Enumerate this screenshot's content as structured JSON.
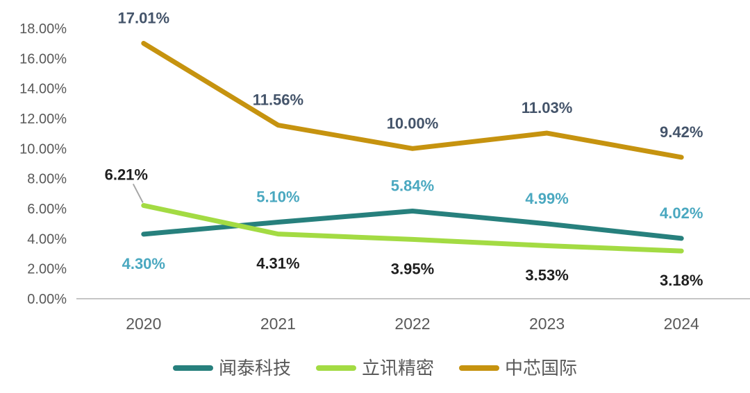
{
  "chart_data": {
    "type": "line",
    "categories": [
      "2020",
      "2021",
      "2022",
      "2023",
      "2024"
    ],
    "series": [
      {
        "name": "闻泰科技",
        "color": "#27807D",
        "values": [
          4.3,
          5.1,
          5.84,
          4.99,
          4.02
        ],
        "data_labels": [
          "4.30%",
          "5.10%",
          "5.84%",
          "4.99%",
          "4.02%"
        ],
        "label_color": "#4AA8C0",
        "label_positions": [
          "below",
          "above",
          "above",
          "above",
          "above"
        ]
      },
      {
        "name": "立讯精密",
        "color": "#A3DB43",
        "values": [
          6.21,
          4.31,
          3.95,
          3.53,
          3.18
        ],
        "data_labels": [
          "6.21%",
          "4.31%",
          "3.95%",
          "3.53%",
          "3.18%"
        ],
        "label_color": "#1F1F1F",
        "label_positions": [
          "callout-above",
          "below",
          "below",
          "below",
          "below"
        ]
      },
      {
        "name": "中芯国际",
        "color": "#C6930F",
        "values": [
          17.01,
          11.56,
          10.0,
          11.03,
          9.42
        ],
        "data_labels": [
          "17.01%",
          "11.56%",
          "10.00%",
          "11.03%",
          "9.42%"
        ],
        "label_color": "#44546A",
        "label_positions": [
          "above",
          "above",
          "above",
          "above",
          "above"
        ]
      }
    ],
    "ylim": [
      0,
      18
    ],
    "ytick_step": 2,
    "ytick_labels": [
      "0.00%",
      "2.00%",
      "4.00%",
      "6.00%",
      "8.00%",
      "10.00%",
      "12.00%",
      "14.00%",
      "16.00%",
      "18.00%"
    ],
    "grid": false,
    "legend_position": "bottom",
    "legend": [
      "闻泰科技",
      "立讯精密",
      "中芯国际"
    ],
    "colors": {
      "axis_line": "#C5C5C5",
      "tick_label": "#595959",
      "legend_label": "#595959",
      "callout_leader": "#A6A6A6",
      "background": "#FFFFFF"
    }
  }
}
